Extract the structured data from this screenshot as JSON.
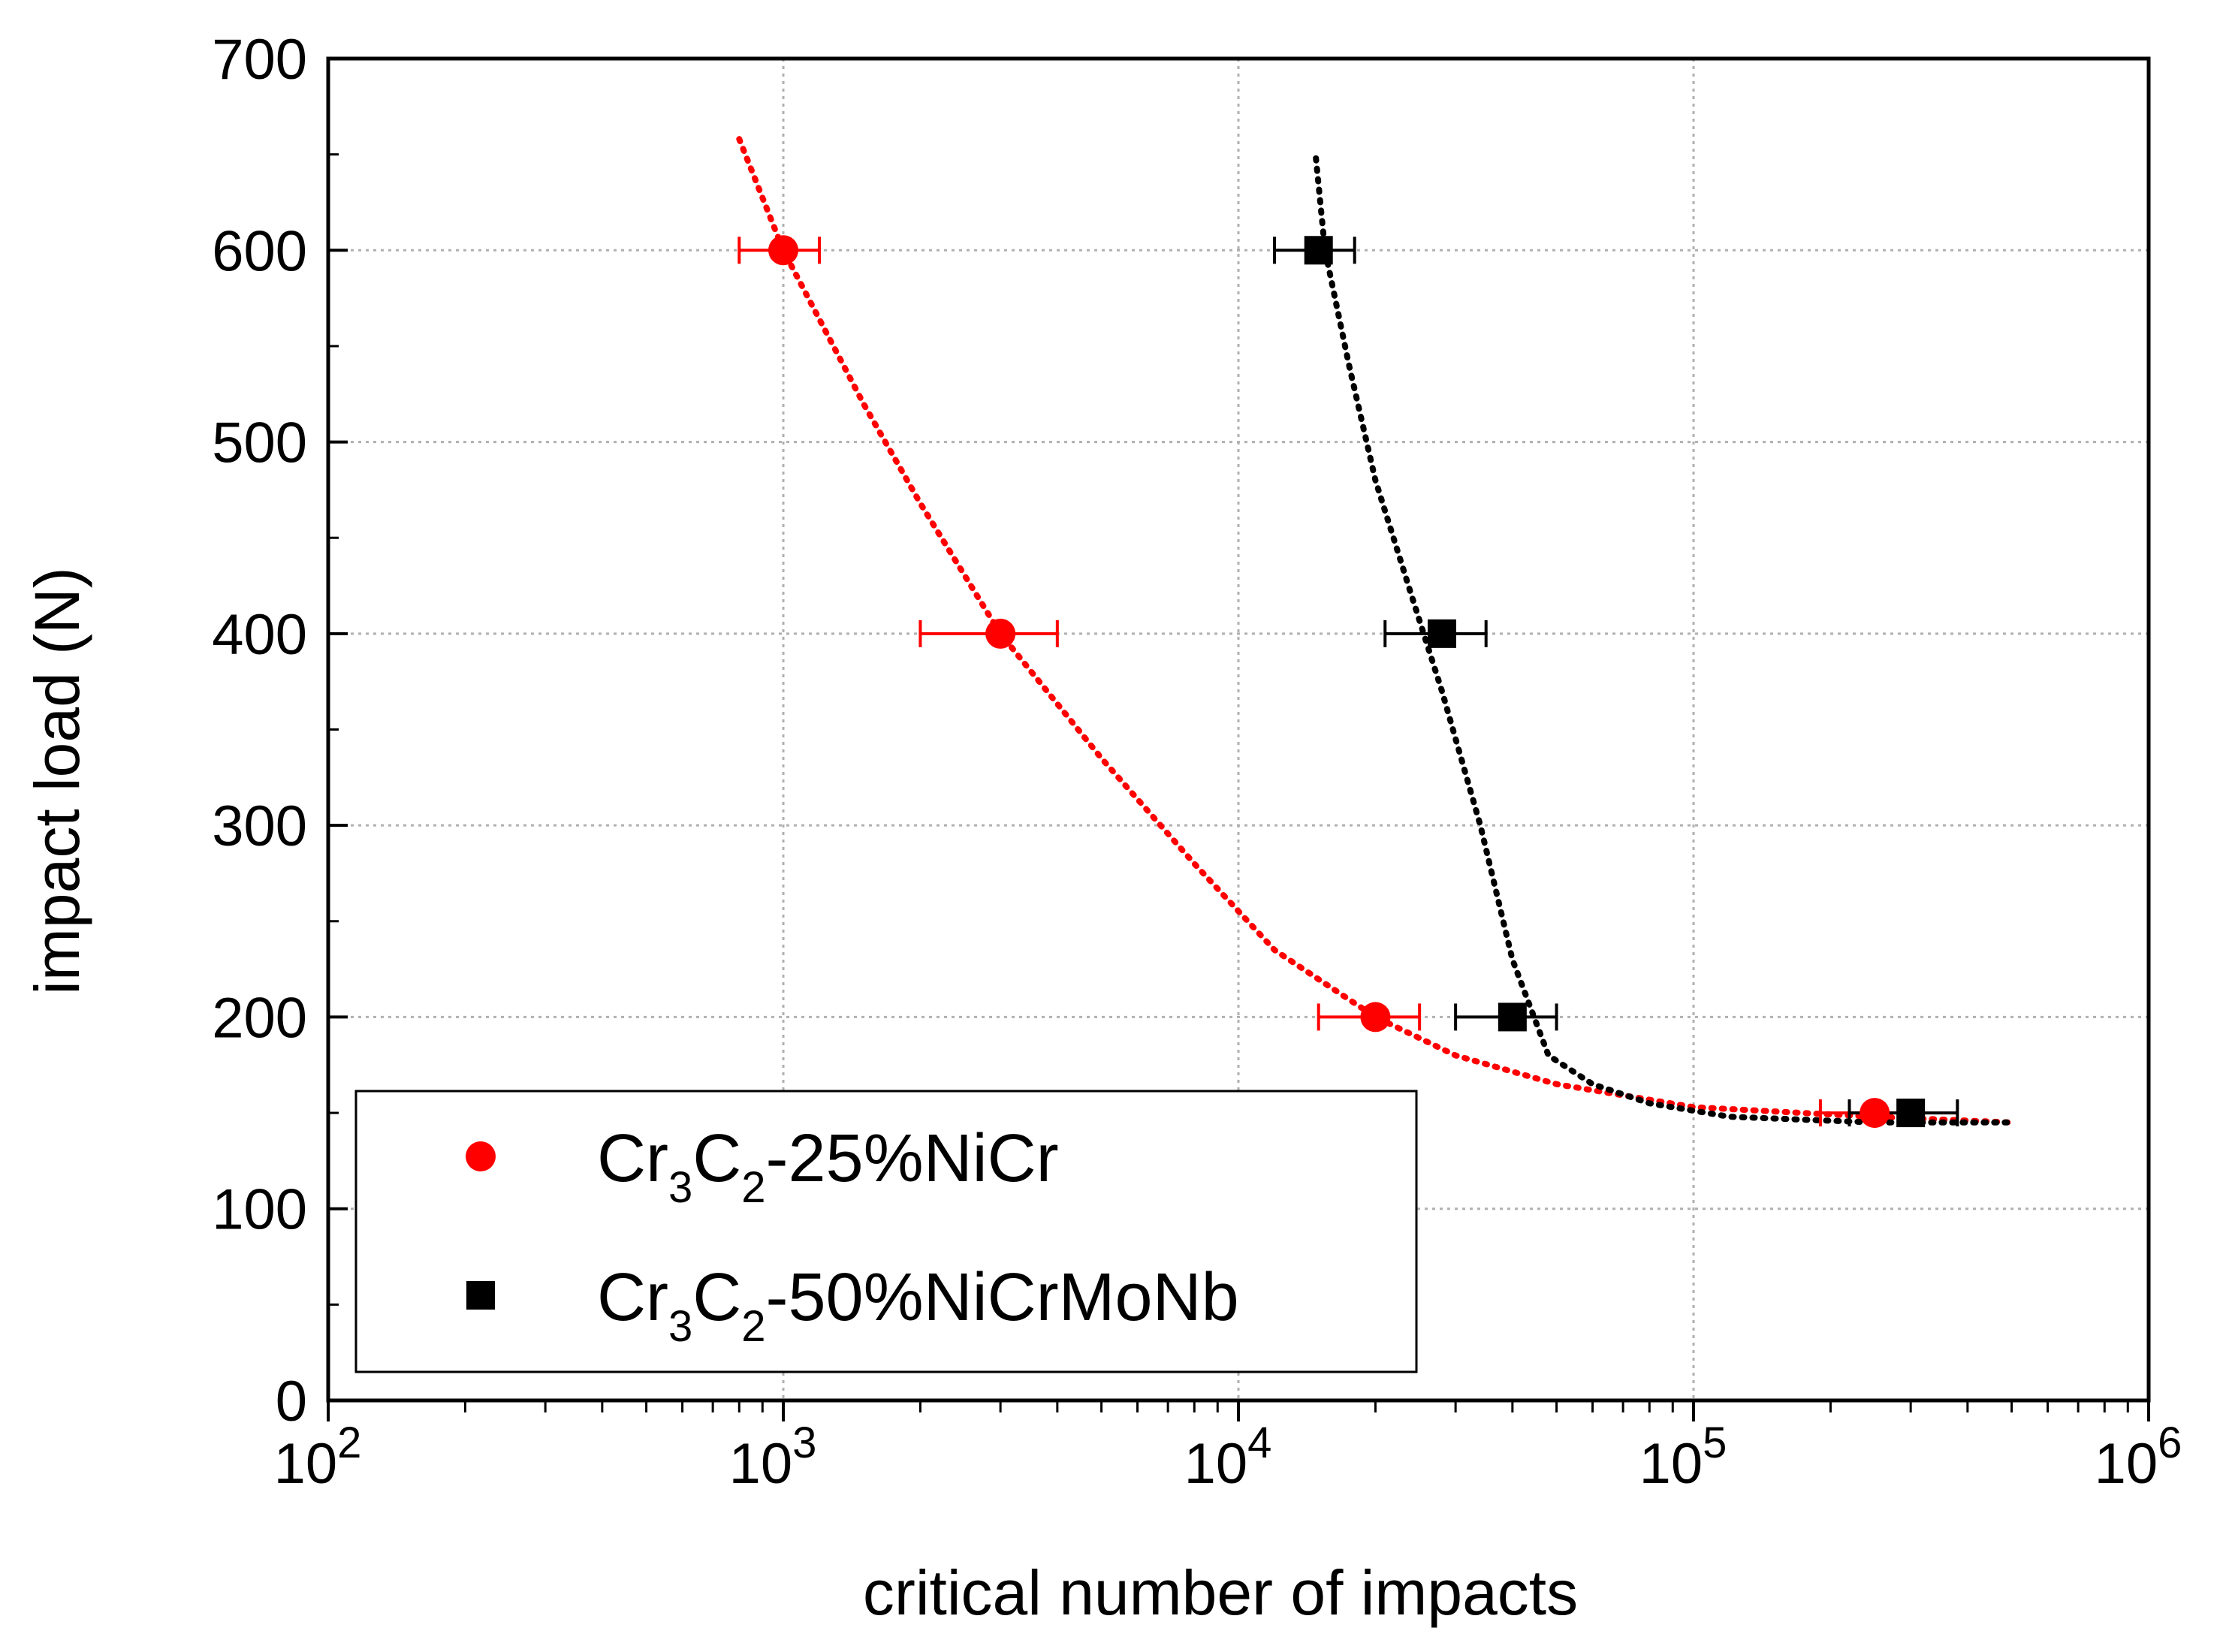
{
  "chart_data": {
    "type": "scatter",
    "title": "",
    "xlabel": "critical number of impacts",
    "ylabel": "impact load (N)",
    "x_scale": "log",
    "xlim": [
      100,
      1000000
    ],
    "ylim": [
      0,
      700
    ],
    "grid": true,
    "legend_position": "bottom-left",
    "x_ticks": [
      {
        "value": 100,
        "base": "10",
        "exp": "2"
      },
      {
        "value": 1000,
        "base": "10",
        "exp": "3"
      },
      {
        "value": 10000,
        "base": "10",
        "exp": "4"
      },
      {
        "value": 100000,
        "base": "10",
        "exp": "5"
      },
      {
        "value": 1000000,
        "base": "10",
        "exp": "6"
      }
    ],
    "y_ticks": [
      {
        "value": 0,
        "label": "0"
      },
      {
        "value": 100,
        "label": "100"
      },
      {
        "value": 200,
        "label": "200"
      },
      {
        "value": 300,
        "label": "300"
      },
      {
        "value": 400,
        "label": "400"
      },
      {
        "value": 500,
        "label": "500"
      },
      {
        "value": 600,
        "label": "600"
      },
      {
        "value": 700,
        "label": "700"
      }
    ],
    "series": [
      {
        "name": "Cr3C2-25%NiCr",
        "legend_parts": [
          "Cr",
          "3",
          "C",
          "2",
          "-25%NiCr"
        ],
        "color": "#ff0000",
        "marker": "circle",
        "points": [
          {
            "x": 1000,
            "y": 600,
            "xerr": [
              800,
              1200
            ]
          },
          {
            "x": 3000,
            "y": 400,
            "xerr": [
              2000,
              4000
            ]
          },
          {
            "x": 20000,
            "y": 200,
            "xerr": [
              15000,
              25000
            ]
          },
          {
            "x": 250000,
            "y": 150,
            "xerr": [
              190000,
              310000
            ]
          }
        ],
        "fit": [
          [
            800,
            658
          ],
          [
            1000,
            600
          ],
          [
            1500,
            520
          ],
          [
            2000,
            468
          ],
          [
            3000,
            400
          ],
          [
            5000,
            335
          ],
          [
            8000,
            280
          ],
          [
            12000,
            235
          ],
          [
            20000,
            200
          ],
          [
            30000,
            180
          ],
          [
            50000,
            165
          ],
          [
            100000,
            153
          ],
          [
            250000,
            148
          ],
          [
            500000,
            145
          ]
        ]
      },
      {
        "name": "Cr3C2-50%NiCrMoNb",
        "legend_parts": [
          "Cr",
          "3",
          "C",
          "2",
          "-50%NiCrMoNb"
        ],
        "color": "#000000",
        "marker": "square",
        "points": [
          {
            "x": 15000,
            "y": 600,
            "xerr": [
              12000,
              18000
            ]
          },
          {
            "x": 28000,
            "y": 400,
            "xerr": [
              21000,
              35000
            ]
          },
          {
            "x": 40000,
            "y": 200,
            "xerr": [
              30000,
              50000
            ]
          },
          {
            "x": 300000,
            "y": 150,
            "xerr": [
              220000,
              380000
            ]
          }
        ],
        "fit": [
          [
            14800,
            648
          ],
          [
            15500,
            600
          ],
          [
            17500,
            540
          ],
          [
            20000,
            480
          ],
          [
            24000,
            420
          ],
          [
            28000,
            370
          ],
          [
            34000,
            300
          ],
          [
            40000,
            230
          ],
          [
            48000,
            180
          ],
          [
            60000,
            165
          ],
          [
            80000,
            155
          ],
          [
            120000,
            148
          ],
          [
            250000,
            145
          ],
          [
            500000,
            145
          ]
        ]
      }
    ]
  }
}
